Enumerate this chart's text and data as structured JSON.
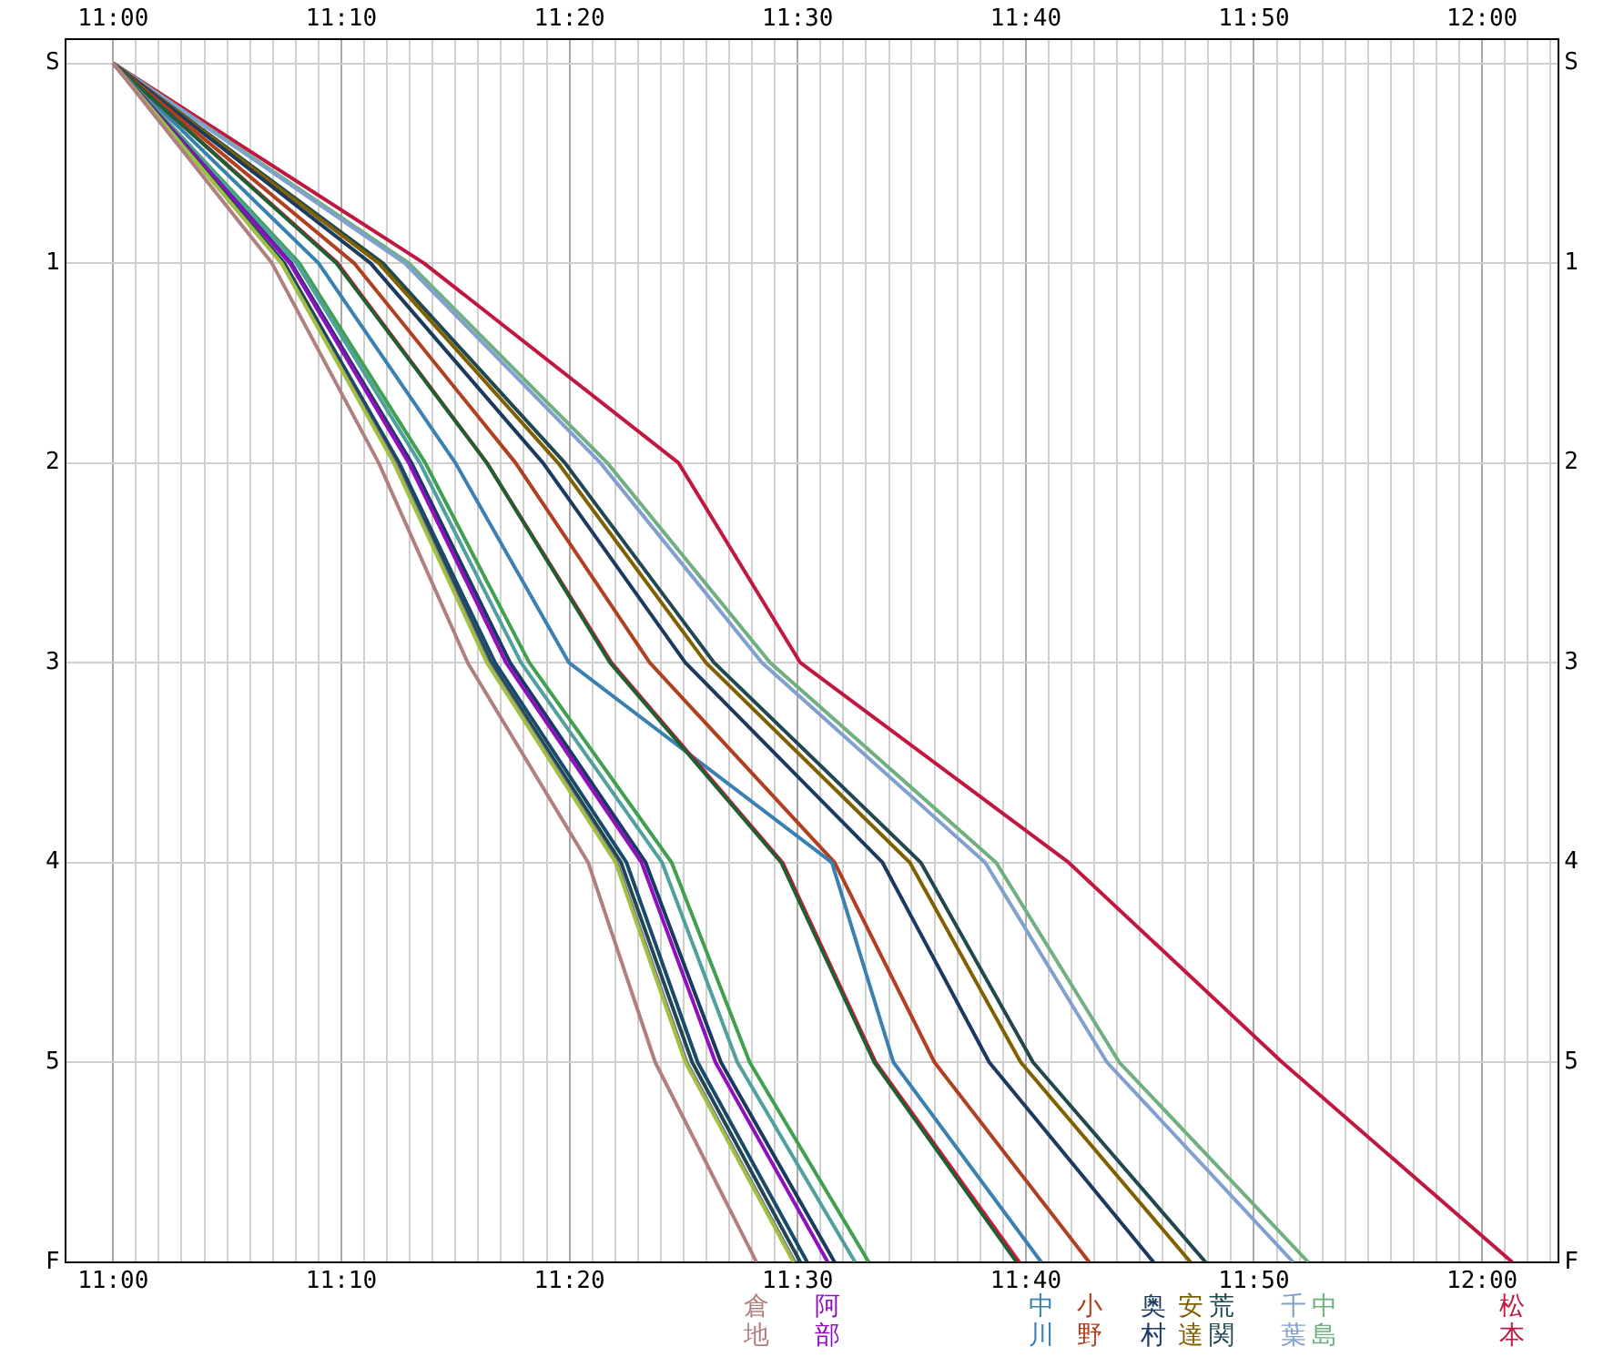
{
  "chart_data": {
    "type": "line",
    "grid": true,
    "xlim": [
      10.965,
      12.056
    ],
    "x2lim": [
      10.965,
      12.056
    ],
    "xticks": [
      {
        "value": 11,
        "label": "11:00"
      },
      {
        "value": 11.0167,
        "label": null
      },
      {
        "value": 11.0333,
        "label": null
      },
      {
        "value": 11.05,
        "label": null
      },
      {
        "value": 11.0667,
        "label": null
      },
      {
        "value": 11.0833,
        "label": null
      },
      {
        "value": 11.1,
        "label": null
      },
      {
        "value": 11.1167,
        "label": null
      },
      {
        "value": 11.1333,
        "label": null
      },
      {
        "value": 11.15,
        "label": null
      },
      {
        "value": 11.1667,
        "label": "11:10"
      },
      {
        "value": 11.1833,
        "label": null
      },
      {
        "value": 11.2,
        "label": null
      },
      {
        "value": 11.2167,
        "label": null
      },
      {
        "value": 11.2333,
        "label": null
      },
      {
        "value": 11.25,
        "label": null
      },
      {
        "value": 11.2667,
        "label": null
      },
      {
        "value": 11.2833,
        "label": null
      },
      {
        "value": 11.3,
        "label": null
      },
      {
        "value": 11.3167,
        "label": null
      },
      {
        "value": 11.3333,
        "label": "11:20"
      },
      {
        "value": 11.35,
        "label": null
      },
      {
        "value": 11.3667,
        "label": null
      },
      {
        "value": 11.3833,
        "label": null
      },
      {
        "value": 11.4,
        "label": null
      },
      {
        "value": 11.4167,
        "label": null
      },
      {
        "value": 11.4333,
        "label": null
      },
      {
        "value": 11.45,
        "label": null
      },
      {
        "value": 11.4667,
        "label": null
      },
      {
        "value": 11.4833,
        "label": null
      },
      {
        "value": 11.5,
        "label": "11:30"
      },
      {
        "value": 11.5167,
        "label": null
      },
      {
        "value": 11.5333,
        "label": null
      },
      {
        "value": 11.55,
        "label": null
      },
      {
        "value": 11.5667,
        "label": null
      },
      {
        "value": 11.5833,
        "label": null
      },
      {
        "value": 11.6,
        "label": null
      },
      {
        "value": 11.6167,
        "label": null
      },
      {
        "value": 11.6333,
        "label": null
      },
      {
        "value": 11.65,
        "label": null
      },
      {
        "value": 11.6667,
        "label": "11:40"
      },
      {
        "value": 11.6833,
        "label": null
      },
      {
        "value": 11.7,
        "label": null
      },
      {
        "value": 11.7167,
        "label": null
      },
      {
        "value": 11.7333,
        "label": null
      },
      {
        "value": 11.75,
        "label": null
      },
      {
        "value": 11.7667,
        "label": null
      },
      {
        "value": 11.7833,
        "label": null
      },
      {
        "value": 11.8,
        "label": null
      },
      {
        "value": 11.8167,
        "label": null
      },
      {
        "value": 11.8333,
        "label": "11:50"
      },
      {
        "value": 11.85,
        "label": null
      },
      {
        "value": 11.8667,
        "label": null
      },
      {
        "value": 11.8833,
        "label": null
      },
      {
        "value": 11.9,
        "label": null
      },
      {
        "value": 11.9167,
        "label": null
      },
      {
        "value": 11.9333,
        "label": null
      },
      {
        "value": 11.95,
        "label": null
      },
      {
        "value": 11.9667,
        "label": null
      },
      {
        "value": 11.9833,
        "label": null
      },
      {
        "value": 12,
        "label": "12:00"
      },
      {
        "value": 12.0167,
        "label": null
      },
      {
        "value": 12.0333,
        "label": null
      },
      {
        "value": 12.05,
        "label": null
      }
    ],
    "x2ticks": [
      {
        "value": 11,
        "label": "11:00"
      },
      {
        "value": 11.1667,
        "label": "11:10"
      },
      {
        "value": 11.3333,
        "label": "11:20"
      },
      {
        "value": 11.5,
        "label": "11:30"
      },
      {
        "value": 11.6667,
        "label": "11:40"
      },
      {
        "value": 11.8333,
        "label": "11:50"
      },
      {
        "value": 12,
        "label": "12:00"
      }
    ],
    "ylim": [
      6,
      -0.12
    ],
    "y2lim": [
      6,
      -0.12
    ],
    "yticks": [
      {
        "value": 0,
        "label": "S"
      },
      1,
      2,
      3,
      4,
      5,
      {
        "value": 6,
        "label": "F"
      }
    ],
    "y2ticks": [
      {
        "value": 0,
        "label": "S"
      },
      1,
      2,
      3,
      4,
      5,
      {
        "value": 6,
        "label": "F"
      }
    ],
    "series": [
      {
        "name": "倉地",
        "color": "#b08080",
        "x": [
          11,
          11.116,
          11.194,
          11.259,
          11.347,
          11.396,
          11.47
        ],
        "values": [
          0,
          1,
          2,
          3,
          4,
          5,
          6
        ]
      },
      {
        "color": "#a0c040",
        "x": [
          11,
          11.123,
          11.205,
          11.273,
          11.367,
          11.418,
          11.497
        ],
        "values": [
          0,
          1,
          2,
          3,
          4,
          5,
          6
        ]
      },
      {
        "color": "#8070a0",
        "x": [
          11,
          11.123,
          11.206,
          11.274,
          11.368,
          11.419,
          11.498
        ],
        "values": [
          0,
          1,
          2,
          3,
          4,
          5,
          6
        ]
      },
      {
        "color": "#204850",
        "x": [
          11,
          11.124,
          11.207,
          11.276,
          11.371,
          11.423,
          11.502
        ],
        "values": [
          0,
          1,
          2,
          3,
          4,
          5,
          6
        ]
      },
      {
        "color": "#1a4a6a",
        "x": [
          11,
          11.125,
          11.209,
          11.279,
          11.375,
          11.427,
          11.507
        ],
        "values": [
          0,
          1,
          2,
          3,
          4,
          5,
          6
        ]
      },
      {
        "name": "阿部",
        "color": "#9010c0",
        "x": [
          11,
          11.129,
          11.216,
          11.287,
          11.386,
          11.44,
          11.522
        ],
        "values": [
          0,
          1,
          2,
          3,
          4,
          5,
          6
        ]
      },
      {
        "color": "#1a3a60",
        "x": [
          11,
          11.13,
          11.218,
          11.29,
          11.389,
          11.444,
          11.527
        ],
        "values": [
          0,
          1,
          2,
          3,
          4,
          5,
          6
        ]
      },
      {
        "color": "#50a0a0",
        "x": [
          11,
          11.134,
          11.224,
          11.298,
          11.401,
          11.456,
          11.542
        ],
        "values": [
          0,
          1,
          2,
          3,
          4,
          5,
          6
        ]
      },
      {
        "color": "#40a050",
        "x": [
          11,
          11.136,
          11.228,
          11.304,
          11.408,
          11.465,
          11.552
        ],
        "values": [
          0,
          1,
          2,
          3,
          4,
          5,
          6
        ]
      },
      {
        "color": "#206030",
        "x": [
          11,
          11.163,
          11.273,
          11.363,
          11.488,
          11.556,
          11.66
        ],
        "values": [
          0,
          1,
          2,
          3,
          4,
          5,
          6
        ]
      },
      {
        "color": "#e01040",
        "x": [
          11,
          11.164,
          11.273,
          11.364,
          11.489,
          11.557,
          11.662
        ],
        "values": [
          0,
          1,
          2,
          3,
          4,
          5,
          6
        ]
      },
      {
        "name": "中川",
        "color": "#3a80b0",
        "x": [
          11,
          11.15,
          11.25,
          11.333,
          11.525,
          11.57,
          11.678
        ],
        "values": [
          0,
          1,
          2,
          3,
          4,
          5,
          6
        ]
      },
      {
        "name": "小野",
        "color": "#b04020",
        "x": [
          11,
          11.176,
          11.294,
          11.392,
          11.527,
          11.6,
          11.713
        ],
        "values": [
          0,
          1,
          2,
          3,
          4,
          5,
          6
        ]
      },
      {
        "name": "奥村",
        "color": "#1a3a60",
        "x": [
          11,
          11.188,
          11.314,
          11.418,
          11.562,
          11.64,
          11.76
        ],
        "values": [
          0,
          1,
          2,
          3,
          4,
          5,
          6
        ]
      },
      {
        "name": "安達",
        "color": "#806000",
        "x": [
          11,
          11.194,
          11.325,
          11.433,
          11.582,
          11.663,
          11.787
        ],
        "values": [
          0,
          1,
          2,
          3,
          4,
          5,
          6
        ]
      },
      {
        "name": "荒関",
        "color": "#204850",
        "x": [
          11,
          11.197,
          11.33,
          11.439,
          11.59,
          11.672,
          11.798
        ],
        "values": [
          0,
          1,
          2,
          3,
          4,
          5,
          6
        ]
      },
      {
        "name": "千葉",
        "color": "#80a0d0",
        "x": [
          11,
          11.213,
          11.356,
          11.474,
          11.637,
          11.726,
          11.862
        ],
        "values": [
          0,
          1,
          2,
          3,
          4,
          5,
          6
        ]
      },
      {
        "name": "中島",
        "color": "#70b080",
        "x": [
          11,
          11.216,
          11.361,
          11.48,
          11.645,
          11.735,
          11.873
        ],
        "values": [
          0,
          1,
          2,
          3,
          4,
          5,
          6
        ]
      },
      {
        "name": "松本",
        "color": "#c01840",
        "x": [
          11,
          11.227,
          11.413,
          11.502,
          11.698,
          11.854,
          12.022
        ],
        "values": [
          0,
          1,
          2,
          3,
          4,
          5,
          6
        ]
      }
    ]
  }
}
